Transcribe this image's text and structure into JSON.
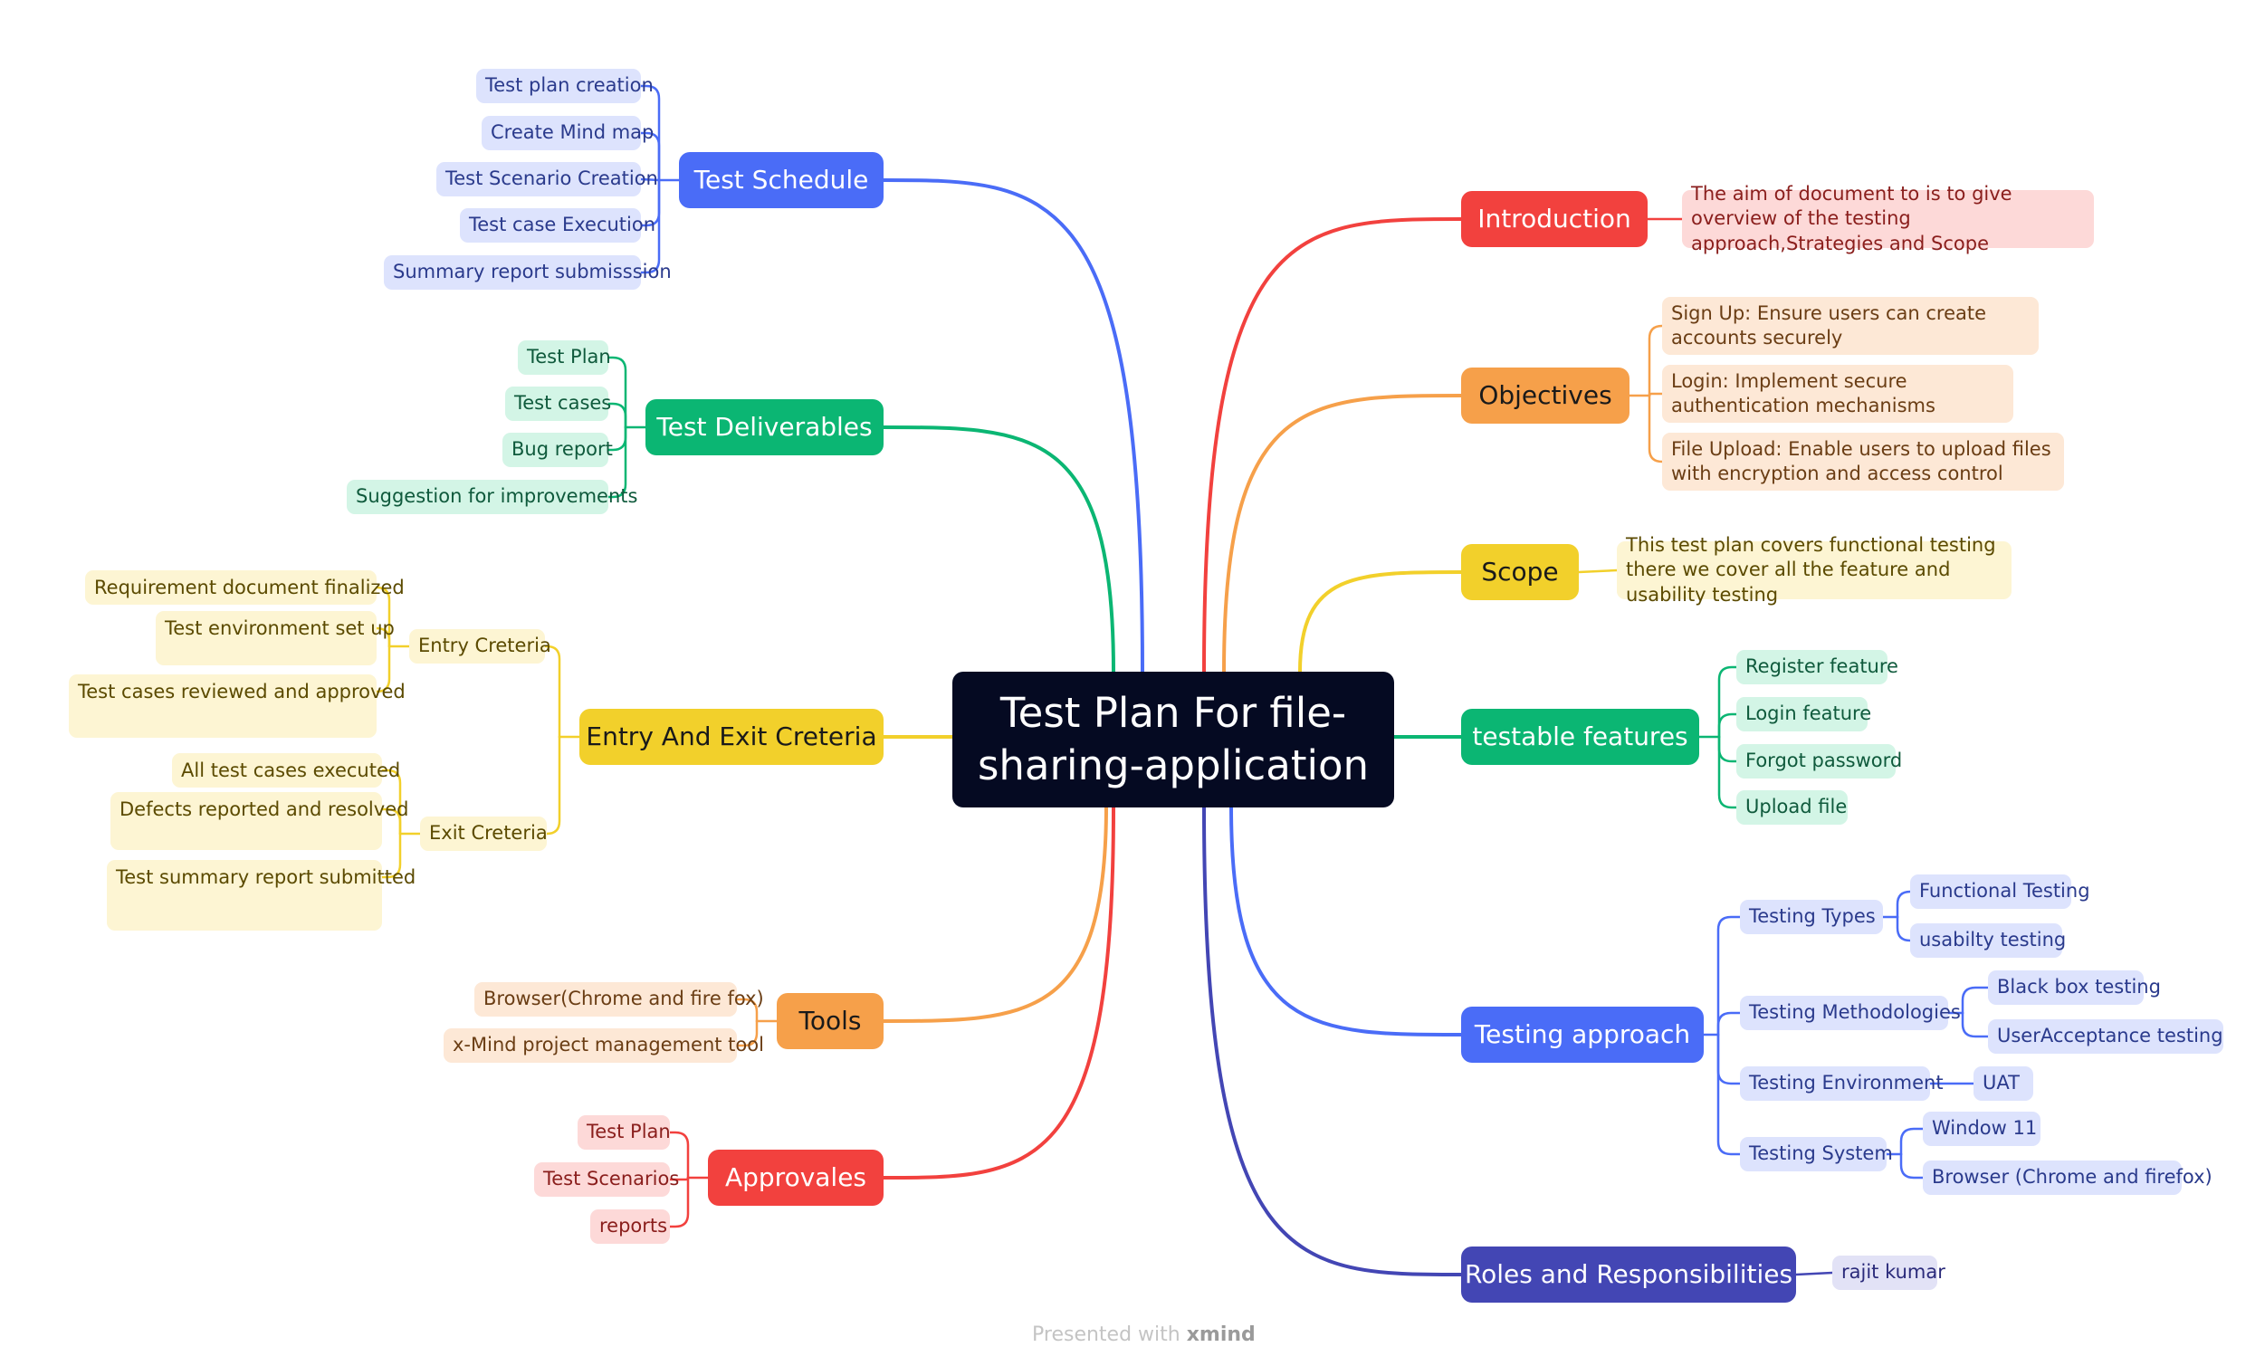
{
  "central_topic": "Test Plan For file-sharing-application",
  "watermark": {
    "prefix": "Presented with",
    "brand": "xmind"
  },
  "colors": {
    "blue": "#4a6cf7",
    "green": "#0bb673",
    "yellow": "#f2d02b",
    "orange": "#f6a04a",
    "red": "#f2413e",
    "indigo": "#4346b4",
    "blue_light": "#dde3fd",
    "green_light": "#d3f5e6",
    "yellow_light": "#fdf5d3",
    "orange_light": "#fde8d6",
    "red_light": "#fdd9d8",
    "indigo_light": "#e2e2f6"
  },
  "branches": [
    {
      "id": "test_schedule",
      "label": "Test Schedule",
      "color": "blue",
      "children": [
        {
          "label": "Test plan creation"
        },
        {
          "label": "Create Mind map"
        },
        {
          "label": "Test Scenario Creation"
        },
        {
          "label": "Test case Execution"
        },
        {
          "label": "Summary report submisssion"
        }
      ]
    },
    {
      "id": "test_deliverables",
      "label": "Test Deliverables",
      "color": "green",
      "children": [
        {
          "label": "Test Plan"
        },
        {
          "label": "Test cases"
        },
        {
          "label": "Bug report"
        },
        {
          "label": "Suggestion for improvements"
        }
      ]
    },
    {
      "id": "entry_exit",
      "label": "Entry And Exit Creteria",
      "color": "yellow",
      "children": [
        {
          "label": "Entry Creteria",
          "children": [
            {
              "label": "Requirement document finalized"
            },
            {
              "label": "Test environment set up"
            },
            {
              "label": "Test cases reviewed and approved"
            }
          ]
        },
        {
          "label": "Exit Creteria",
          "children": [
            {
              "label": "All test cases executed"
            },
            {
              "label": "Defects reported and resolved"
            },
            {
              "label": "Test summary report submitted"
            }
          ]
        }
      ]
    },
    {
      "id": "tools",
      "label": "Tools",
      "color": "orange",
      "children": [
        {
          "label": "Browser(Chrome and fire fox)"
        },
        {
          "label": "x-Mind project management tool"
        }
      ]
    },
    {
      "id": "approvales",
      "label": "Approvales",
      "color": "red",
      "children": [
        {
          "label": "Test Plan"
        },
        {
          "label": "Test Scenarios"
        },
        {
          "label": "reports"
        }
      ]
    },
    {
      "id": "introduction",
      "label": "Introduction",
      "color": "red",
      "children": [
        {
          "label": "The aim of document to  is to give overview of the testing approach,Strategies and Scope"
        }
      ]
    },
    {
      "id": "objectives",
      "label": "Objectives",
      "color": "orange",
      "children": [
        {
          "label": "Sign Up: Ensure users can create accounts securely"
        },
        {
          "label": "Login: Implement secure authentication mechanisms"
        },
        {
          "label": "File Upload: Enable users to upload files with encryption and access control"
        }
      ]
    },
    {
      "id": "scope",
      "label": "Scope",
      "color": "yellow",
      "children": [
        {
          "label": "This test plan covers functional testing there we cover all the feature and usability testing"
        }
      ]
    },
    {
      "id": "testable_features",
      "label": "testable features",
      "color": "green",
      "children": [
        {
          "label": "Register feature"
        },
        {
          "label": "Login feature"
        },
        {
          "label": "Forgot password"
        },
        {
          "label": "Upload file"
        }
      ]
    },
    {
      "id": "testing_approach",
      "label": "Testing approach",
      "color": "blue",
      "children": [
        {
          "label": "Testing Types",
          "children": [
            {
              "label": "Functional Testing"
            },
            {
              "label": "usabilty testing"
            }
          ]
        },
        {
          "label": "Testing Methodologies",
          "children": [
            {
              "label": "Black box testing"
            },
            {
              "label": "UserAcceptance testing"
            }
          ]
        },
        {
          "label": "Testing Environment",
          "children": [
            {
              "label": "UAT"
            }
          ]
        },
        {
          "label": "Testing System",
          "children": [
            {
              "label": "Window 11"
            },
            {
              "label": "Browser (Chrome and firefox)"
            }
          ]
        }
      ]
    },
    {
      "id": "roles",
      "label": "Roles and Responsibilities",
      "color": "indigo",
      "children": [
        {
          "label": "rajit kumar"
        }
      ]
    }
  ]
}
